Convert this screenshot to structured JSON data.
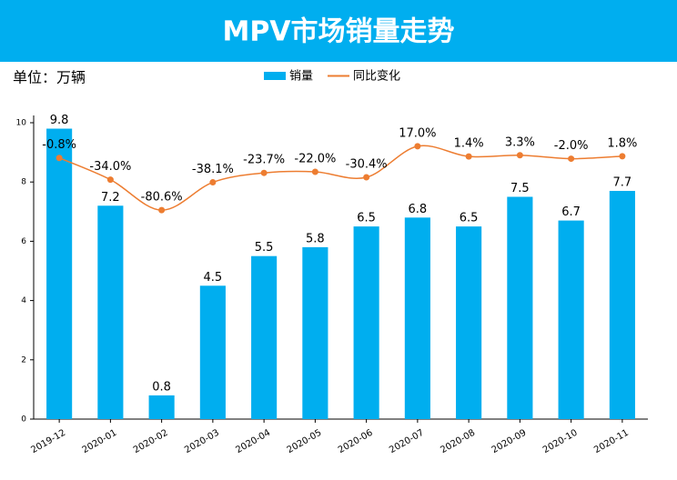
{
  "chart_data": {
    "type": "bar",
    "title": "MPV市场销量走势",
    "unit_label": "单位：万辆",
    "categories": [
      "2019-12",
      "2020-01",
      "2020-02",
      "2020-03",
      "2020-04",
      "2020-05",
      "2020-06",
      "2020-07",
      "2020-08",
      "2020-09",
      "2020-10",
      "2020-11"
    ],
    "series": [
      {
        "name": "销量",
        "type": "bar",
        "color": "#00aeef",
        "values": [
          9.8,
          7.2,
          0.8,
          4.5,
          5.5,
          5.8,
          6.5,
          6.8,
          6.5,
          7.5,
          6.7,
          7.7
        ]
      },
      {
        "name": "同比变化",
        "type": "line",
        "axis": "y2",
        "color": "#ed7d31",
        "values": [
          -0.8,
          -34.0,
          -80.6,
          -38.1,
          -23.7,
          -22.0,
          -30.4,
          17.0,
          1.4,
          3.3,
          -2.0,
          1.8
        ],
        "value_labels": [
          "-0.8%",
          "-34.0%",
          "-80.6%",
          "-38.1%",
          "-23.7%",
          "-22.0%",
          "-30.4%",
          "17.0%",
          "1.4%",
          "3.3%",
          "-2.0%",
          "1.8%"
        ]
      }
    ],
    "ylim": [
      0,
      10
    ],
    "yticks": [
      0,
      2,
      4,
      6,
      8,
      10
    ],
    "y2lim": [
      -400,
      53
    ],
    "legend": "top"
  }
}
